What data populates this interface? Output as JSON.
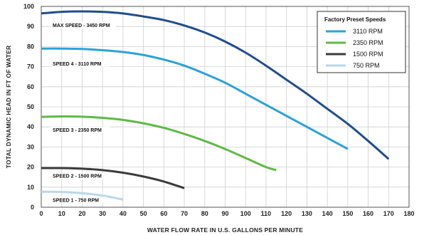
{
  "chart_data": {
    "type": "line",
    "xlabel": "WATER FLOW RATE IN U.S. GALLONS PER MINUTE",
    "ylabel": "TOTAL DYNAMIC HEAD IN FT OF WATER",
    "xlim": [
      0,
      180
    ],
    "ylim": [
      0,
      100
    ],
    "x_ticks": [
      0,
      10,
      20,
      30,
      40,
      50,
      60,
      70,
      80,
      90,
      100,
      110,
      120,
      130,
      140,
      150,
      160,
      170,
      180
    ],
    "y_ticks": [
      0,
      10,
      20,
      30,
      40,
      50,
      60,
      70,
      80,
      90,
      100
    ],
    "grid": true,
    "legend": {
      "title": "Factory Preset Speeds",
      "placement": "top-right",
      "entries": [
        "3110 RPM",
        "2350 RPM",
        "1500 RPM",
        "750 RPM"
      ]
    },
    "series": [
      {
        "name": "3450 RPM",
        "label": "MAX SPEED - 3450 RPM",
        "color": "#1f4e8c",
        "label_y": 90,
        "points": [
          [
            0,
            96.5
          ],
          [
            10,
            97.3
          ],
          [
            20,
            97.5
          ],
          [
            30,
            97.3
          ],
          [
            40,
            96.5
          ],
          [
            50,
            95.0
          ],
          [
            60,
            93.2
          ],
          [
            70,
            90.5
          ],
          [
            80,
            87.0
          ],
          [
            90,
            82.5
          ],
          [
            100,
            77.0
          ],
          [
            110,
            70.5
          ],
          [
            120,
            63.5
          ],
          [
            130,
            56.5
          ],
          [
            140,
            49.0
          ],
          [
            150,
            41.5
          ],
          [
            160,
            33.0
          ],
          [
            170,
            24.0
          ]
        ]
      },
      {
        "name": "3110 RPM",
        "label": "SPEED 4 - 3110 RPM",
        "color": "#2ba2d8",
        "label_y": 71,
        "points": [
          [
            0,
            79.0
          ],
          [
            10,
            79.0
          ],
          [
            20,
            78.8
          ],
          [
            30,
            78.2
          ],
          [
            40,
            77.3
          ],
          [
            50,
            75.8
          ],
          [
            60,
            73.5
          ],
          [
            70,
            70.5
          ],
          [
            80,
            66.5
          ],
          [
            90,
            62.0
          ],
          [
            100,
            56.5
          ],
          [
            110,
            51.0
          ],
          [
            120,
            45.5
          ],
          [
            130,
            40.0
          ],
          [
            140,
            34.5
          ],
          [
            150,
            29.0
          ]
        ]
      },
      {
        "name": "2350 RPM",
        "label": "SPEED 3 - 2350 RPM",
        "color": "#5fb946",
        "label_y": 38,
        "points": [
          [
            0,
            45.0
          ],
          [
            10,
            45.2
          ],
          [
            20,
            45.1
          ],
          [
            30,
            44.5
          ],
          [
            40,
            43.5
          ],
          [
            50,
            41.8
          ],
          [
            60,
            39.5
          ],
          [
            70,
            36.5
          ],
          [
            80,
            33.0
          ],
          [
            90,
            29.0
          ],
          [
            100,
            24.5
          ],
          [
            110,
            20.0
          ],
          [
            115,
            18.5
          ]
        ]
      },
      {
        "name": "1500 RPM",
        "label": "SPEED 2 - 1500 RPM",
        "color": "#3b3b3b",
        "label_y": 15,
        "points": [
          [
            0,
            19.5
          ],
          [
            10,
            19.5
          ],
          [
            20,
            19.2
          ],
          [
            30,
            18.5
          ],
          [
            40,
            17.2
          ],
          [
            50,
            15.3
          ],
          [
            60,
            12.8
          ],
          [
            70,
            9.5
          ]
        ]
      },
      {
        "name": "750 RPM",
        "label": "SPEED 1 - 750 RPM",
        "color": "#b9d7ea",
        "label_y": 3,
        "points": [
          [
            0,
            7.7
          ],
          [
            10,
            7.6
          ],
          [
            20,
            7.0
          ],
          [
            30,
            5.8
          ],
          [
            40,
            3.8
          ]
        ]
      }
    ]
  }
}
